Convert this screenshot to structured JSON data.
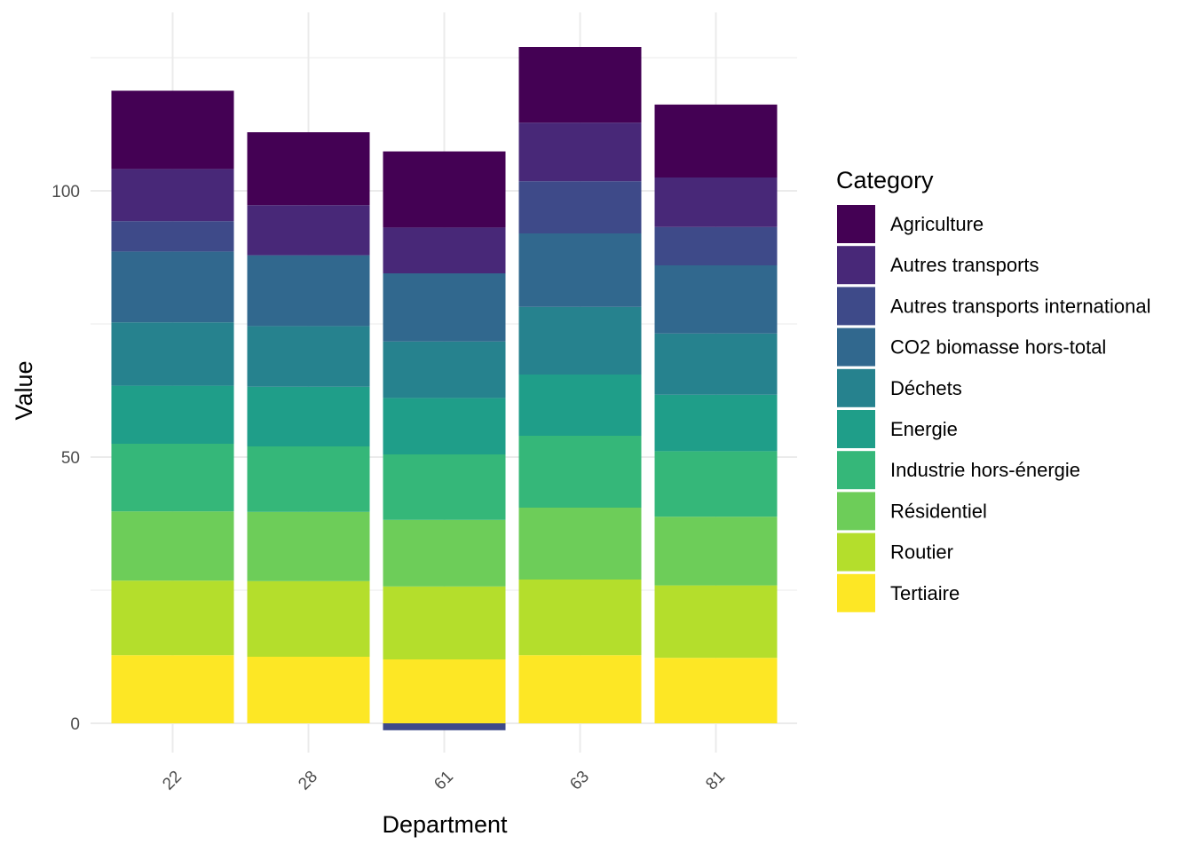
{
  "chart_data": {
    "type": "bar",
    "stacked": true,
    "xlabel": "Department",
    "ylabel": "Value",
    "categories": [
      "22",
      "28",
      "61",
      "63",
      "81"
    ],
    "ylim": [
      -5,
      125
    ],
    "yticks": [
      0,
      50,
      100
    ],
    "grid": true,
    "legend": {
      "title": "Category",
      "position": "right"
    },
    "series": [
      {
        "name": "Tertiaire",
        "color": "#FDE725",
        "values": [
          12.8,
          12.5,
          12.0,
          12.8,
          12.3
        ]
      },
      {
        "name": "Routier",
        "color": "#B4DE2C",
        "values": [
          14.0,
          14.2,
          13.7,
          14.2,
          13.6
        ]
      },
      {
        "name": "Résidentiel",
        "color": "#6DCD59",
        "values": [
          13.0,
          13.0,
          12.5,
          13.5,
          12.9
        ]
      },
      {
        "name": "Industrie hors-énergie",
        "color": "#35B779",
        "values": [
          12.7,
          12.3,
          12.3,
          13.5,
          12.3
        ]
      },
      {
        "name": "Energie",
        "color": "#1F9E89",
        "values": [
          10.9,
          11.2,
          10.6,
          11.5,
          10.6
        ]
      },
      {
        "name": "Déchets",
        "color": "#26828E",
        "values": [
          11.9,
          11.4,
          10.6,
          12.7,
          11.5
        ]
      },
      {
        "name": "CO2 biomasse hors-total",
        "color": "#31688E",
        "values": [
          13.3,
          13.3,
          12.8,
          13.8,
          12.8
        ]
      },
      {
        "name": "Autres transports international",
        "color": "#3E4A89",
        "values": [
          5.7,
          0.0,
          -1.3,
          9.8,
          7.2
        ]
      },
      {
        "name": "Autres transports",
        "color": "#482878",
        "values": [
          9.8,
          9.4,
          8.6,
          11.0,
          9.3
        ]
      },
      {
        "name": "Agriculture",
        "color": "#440154",
        "values": [
          14.7,
          13.7,
          14.3,
          14.2,
          13.7
        ]
      }
    ],
    "legend_order": [
      "Agriculture",
      "Autres transports",
      "Autres transports international",
      "CO2 biomasse hors-total",
      "Déchets",
      "Energie",
      "Industrie hors-énergie",
      "Résidentiel",
      "Routier",
      "Tertiaire"
    ]
  }
}
